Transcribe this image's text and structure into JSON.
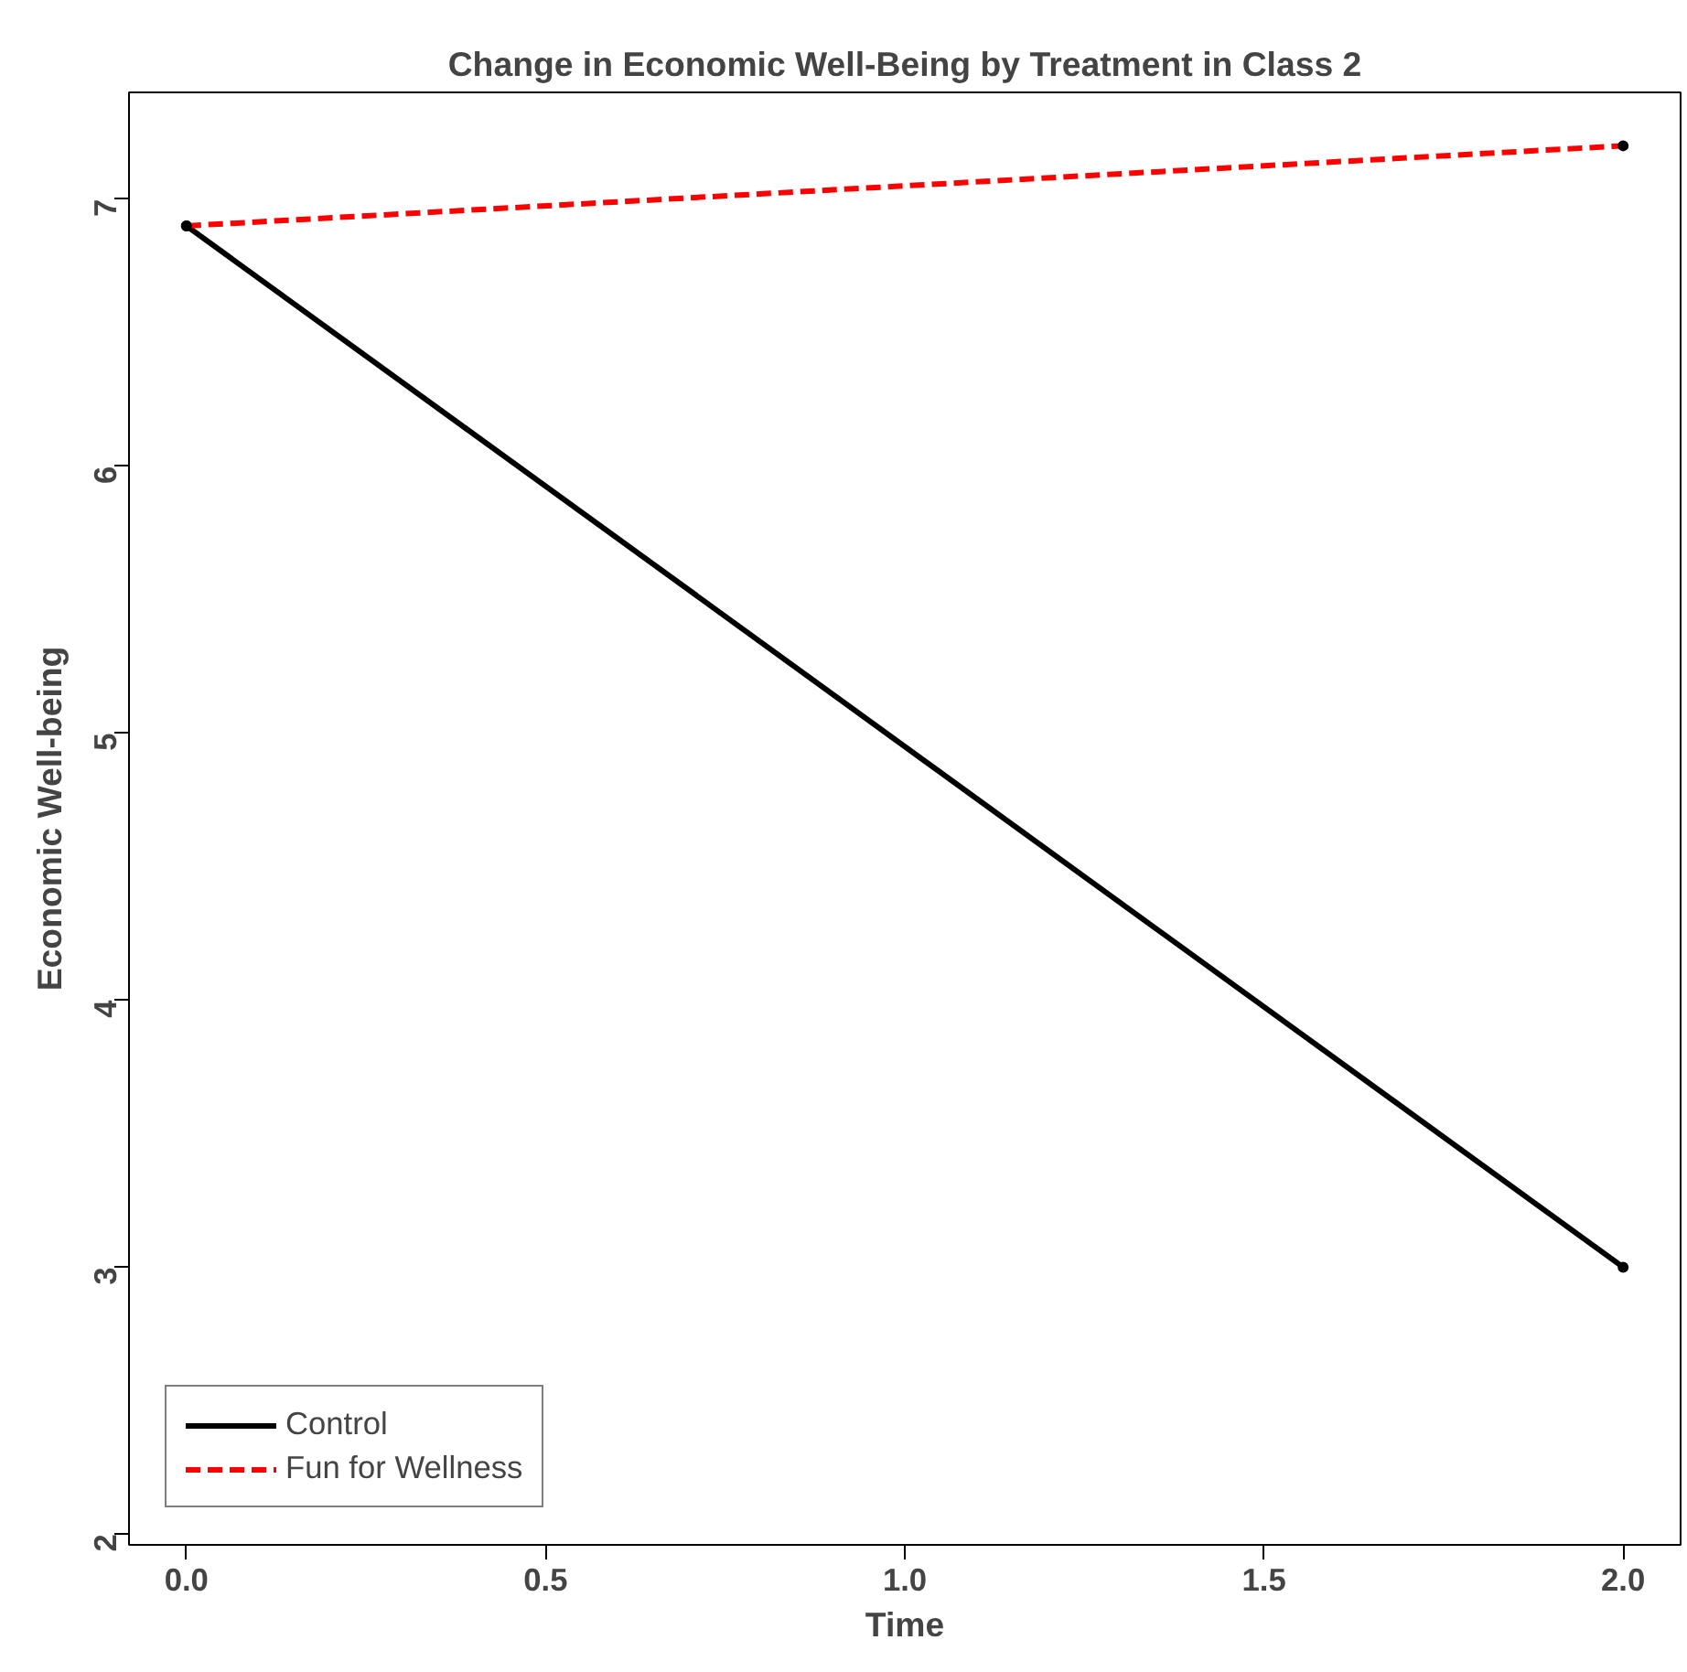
{
  "chart_data": {
    "type": "line",
    "title": "Change in Economic Well-Being by Treatment in Class 2",
    "xlabel": "Time",
    "ylabel": "Economic Well-being",
    "x": [
      0,
      2
    ],
    "series": [
      {
        "name": "Control",
        "color": "#000000",
        "values": [
          6.9,
          3.0
        ],
        "line_style": "solid"
      },
      {
        "name": "Fun for Wellness",
        "color": "#ff0000",
        "values": [
          6.9,
          7.2
        ],
        "line_style": "dashed"
      }
    ],
    "xlim": [
      -0.08,
      2.08
    ],
    "ylim": [
      1.96,
      7.4
    ],
    "xticks": [
      {
        "value": 0,
        "label": "0.0"
      },
      {
        "value": 0.5,
        "label": "0.5"
      },
      {
        "value": 1,
        "label": "1.0"
      },
      {
        "value": 1.5,
        "label": "1.5"
      },
      {
        "value": 2,
        "label": "2.0"
      }
    ],
    "yticks": [
      2,
      3,
      4,
      5,
      6,
      7
    ],
    "grid": false,
    "legend": "bottom left",
    "marker": "circle"
  }
}
